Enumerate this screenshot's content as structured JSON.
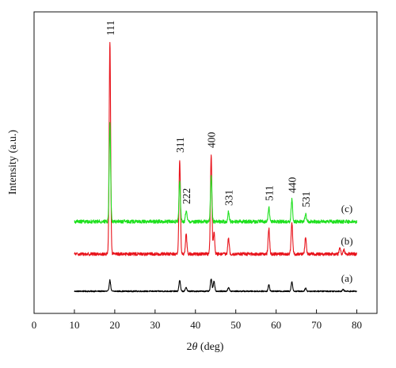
{
  "chart_data": {
    "type": "line",
    "xlabel_prefix": "2",
    "xlabel_theta": "θ",
    "xlabel_unit": " (deg)",
    "ylabel": "Intensity (a.u.)",
    "xlim": [
      0,
      85
    ],
    "x_ticks": [
      "0",
      "10",
      "20",
      "30",
      "40",
      "50",
      "60",
      "70",
      "80"
    ],
    "y_ticks_shown": false,
    "grid": false,
    "x_range_data": [
      10,
      80
    ],
    "peak_labels": [
      {
        "label": "111",
        "x": 18.8
      },
      {
        "label": "311",
        "x": 36.1
      },
      {
        "label": "222",
        "x": 37.7
      },
      {
        "label": "400",
        "x": 43.9
      },
      {
        "label": "331",
        "x": 48.2
      },
      {
        "label": "511",
        "x": 58.2
      },
      {
        "label": "440",
        "x": 63.9
      },
      {
        "label": "531",
        "x": 67.3
      }
    ],
    "series": [
      {
        "name": "(a)",
        "color": "#000000",
        "baseline": 0,
        "noise": 0.8,
        "peaks": [
          {
            "x": 18.8,
            "h": 14
          },
          {
            "x": 36.1,
            "h": 14
          },
          {
            "x": 37.7,
            "h": 5
          },
          {
            "x": 43.9,
            "h": 16
          },
          {
            "x": 44.6,
            "h": 13
          },
          {
            "x": 48.2,
            "h": 5
          },
          {
            "x": 58.2,
            "h": 8
          },
          {
            "x": 63.9,
            "h": 12
          },
          {
            "x": 67.3,
            "h": 4
          },
          {
            "x": 76.6,
            "h": 2
          }
        ]
      },
      {
        "name": "(b)",
        "color": "#e8141c",
        "baseline": 47,
        "noise": 2.0,
        "peaks": [
          {
            "x": 18.8,
            "h": 268
          },
          {
            "x": 36.1,
            "h": 120
          },
          {
            "x": 37.7,
            "h": 25
          },
          {
            "x": 43.9,
            "h": 126
          },
          {
            "x": 44.6,
            "h": 28
          },
          {
            "x": 48.2,
            "h": 20
          },
          {
            "x": 58.2,
            "h": 33
          },
          {
            "x": 63.9,
            "h": 40
          },
          {
            "x": 67.3,
            "h": 22
          },
          {
            "x": 75.8,
            "h": 8
          },
          {
            "x": 76.8,
            "h": 6
          }
        ]
      },
      {
        "name": "(c)",
        "color": "#1fe01f",
        "baseline": 88,
        "noise": 2.2,
        "peaks": [
          {
            "x": 18.8,
            "h": 124
          },
          {
            "x": 36.1,
            "h": 50
          },
          {
            "x": 37.7,
            "h": 14
          },
          {
            "x": 43.9,
            "h": 58
          },
          {
            "x": 48.2,
            "h": 12
          },
          {
            "x": 58.2,
            "h": 18
          },
          {
            "x": 63.9,
            "h": 28
          },
          {
            "x": 67.3,
            "h": 10
          }
        ]
      }
    ]
  }
}
